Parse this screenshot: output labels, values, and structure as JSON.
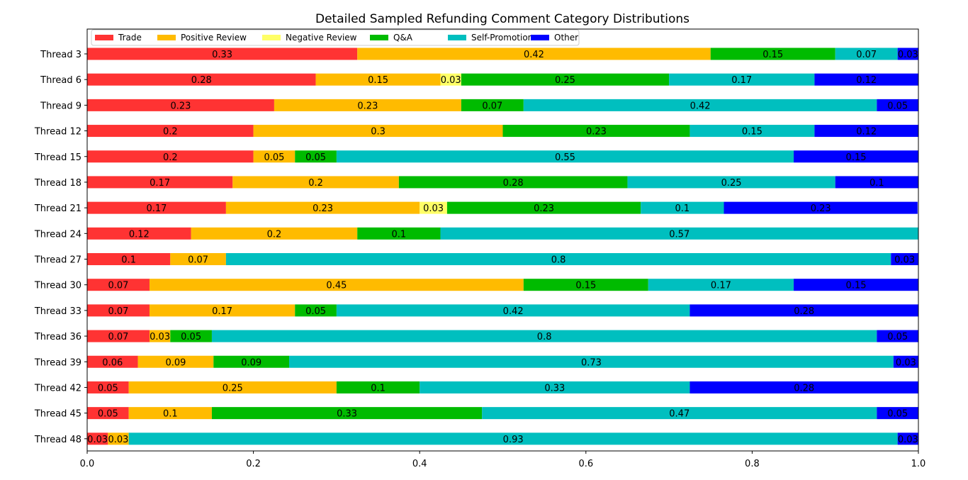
{
  "chart_data": {
    "type": "bar",
    "orientation": "horizontal",
    "stacked": true,
    "title": "Detailed Sampled Refunding Comment Category Distributions",
    "xlabel": "",
    "ylabel": "",
    "xlim": [
      0.0,
      1.0
    ],
    "x_ticks": [
      "0.0",
      "0.2",
      "0.4",
      "0.6",
      "0.8",
      "1.0"
    ],
    "grid": false,
    "legend_position": "top-left",
    "categories": [
      "Thread 3",
      "Thread 6",
      "Thread 9",
      "Thread 12",
      "Thread 15",
      "Thread 18",
      "Thread 21",
      "Thread 24",
      "Thread 27",
      "Thread 30",
      "Thread 33",
      "Thread 36",
      "Thread 39",
      "Thread 42",
      "Thread 45",
      "Thread 48"
    ],
    "series": [
      {
        "name": "Trade",
        "color": "#ff3333",
        "values": [
          0.325,
          0.275,
          0.225,
          0.2,
          0.2,
          0.175,
          0.167,
          0.125,
          0.1,
          0.075,
          0.075,
          0.075,
          0.061,
          0.05,
          0.05,
          0.025
        ],
        "labels": [
          "0.33",
          "0.28",
          "0.23",
          "0.2",
          "0.2",
          "0.17",
          "0.17",
          "0.12",
          "0.1",
          "0.07",
          "0.07",
          "0.07",
          "0.06",
          "0.05",
          "0.05",
          "0.03"
        ]
      },
      {
        "name": "Positive Review",
        "color": "#ffbb00",
        "values": [
          0.425,
          0.15,
          0.225,
          0.3,
          0.05,
          0.2,
          0.233,
          0.2,
          0.067,
          0.45,
          0.175,
          0.025,
          0.091,
          0.25,
          0.1,
          0.025
        ],
        "labels": [
          "0.42",
          "0.15",
          "0.23",
          "0.3",
          "0.05",
          "0.2",
          "0.23",
          "0.2",
          "0.07",
          "0.45",
          "0.17",
          "0.03",
          "0.09",
          "0.25",
          "0.1",
          "0.03"
        ]
      },
      {
        "name": "Negative Review",
        "color": "#ffff66",
        "values": [
          0,
          0.025,
          0,
          0,
          0,
          0,
          0.033,
          0,
          0,
          0,
          0,
          0,
          0,
          0,
          0,
          0
        ],
        "labels": [
          "",
          "0.03",
          "",
          "",
          "",
          "",
          "0.03",
          "",
          "",
          "",
          "",
          "",
          "",
          "",
          "",
          ""
        ]
      },
      {
        "name": "Q&A",
        "color": "#00bb00",
        "values": [
          0.15,
          0.25,
          0.075,
          0.225,
          0.05,
          0.275,
          0.233,
          0.1,
          0,
          0.15,
          0.05,
          0.05,
          0.091,
          0.1,
          0.325,
          0
        ],
        "labels": [
          "0.15",
          "0.25",
          "0.07",
          "0.23",
          "0.05",
          "0.28",
          "0.23",
          "0.1",
          "",
          "0.15",
          "0.05",
          "0.05",
          "0.09",
          "0.1",
          "0.33",
          ""
        ]
      },
      {
        "name": "Self-Promotion",
        "color": "#00bfbf",
        "values": [
          0.075,
          0.175,
          0.425,
          0.15,
          0.55,
          0.25,
          0.1,
          0.575,
          0.8,
          0.175,
          0.425,
          0.8,
          0.727,
          0.325,
          0.475,
          0.925
        ],
        "labels": [
          "0.07",
          "0.17",
          "0.42",
          "0.15",
          "0.55",
          "0.25",
          "0.1",
          "0.57",
          "0.8",
          "0.17",
          "0.42",
          "0.8",
          "0.73",
          "0.33",
          "0.47",
          "0.93"
        ]
      },
      {
        "name": "Other",
        "color": "#0000ff",
        "values": [
          0.025,
          0.125,
          0.05,
          0.125,
          0.15,
          0.1,
          0.233,
          0,
          0.033,
          0.15,
          0.275,
          0.05,
          0.03,
          0.275,
          0.05,
          0.025
        ],
        "labels": [
          "0.03",
          "0.12",
          "0.05",
          "0.12",
          "0.15",
          "0.1",
          "0.23",
          "",
          "0.03",
          "0.15",
          "0.28",
          "0.05",
          "0.03",
          "0.28",
          "0.05",
          "0.03"
        ]
      }
    ]
  }
}
